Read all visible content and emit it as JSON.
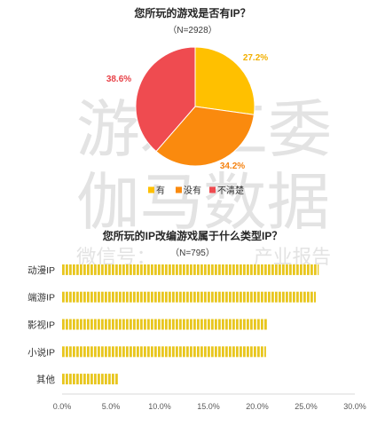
{
  "chart_data": [
    {
      "type": "pie",
      "title": "您所玩的游戏是否有IP？",
      "subtitle": "（N=2928）",
      "categories": [
        "有",
        "没有",
        "不清楚"
      ],
      "values": [
        27.2,
        34.2,
        38.6
      ],
      "value_labels": [
        "27.2%",
        "34.2%",
        "38.6%"
      ],
      "colors": [
        "#FFC000",
        "#FA8A0E",
        "#EF4B50"
      ],
      "label_colors": [
        "#F2B000",
        "#F58312",
        "#E84248"
      ],
      "legend": "bottom"
    },
    {
      "type": "bar",
      "orientation": "horizontal",
      "title": "您所玩的IP改编游戏属于什么类型IP？",
      "subtitle": "（N=795）",
      "categories": [
        "动漫IP",
        "端游IP",
        "影视IP",
        "小说IP",
        "其他"
      ],
      "values": [
        26.3,
        26.0,
        21.0,
        20.9,
        5.8
      ],
      "xlim": [
        0,
        30
      ],
      "xticks": [
        0,
        5,
        10,
        15,
        20,
        25,
        30
      ],
      "xtick_labels": [
        "0.0%",
        "5.0%",
        "10.0%",
        "15.0%",
        "20.0%",
        "25.0%",
        "30.0%"
      ],
      "bar_color": "#E8C61E",
      "axis_color": "#D9D9D9",
      "grid": false
    }
  ],
  "watermark": {
    "lines": [
      "游戏工委",
      "伽马数据"
    ],
    "fragments": [
      "微信号：",
      "产业报告"
    ],
    "color": "#E3E3E3"
  }
}
